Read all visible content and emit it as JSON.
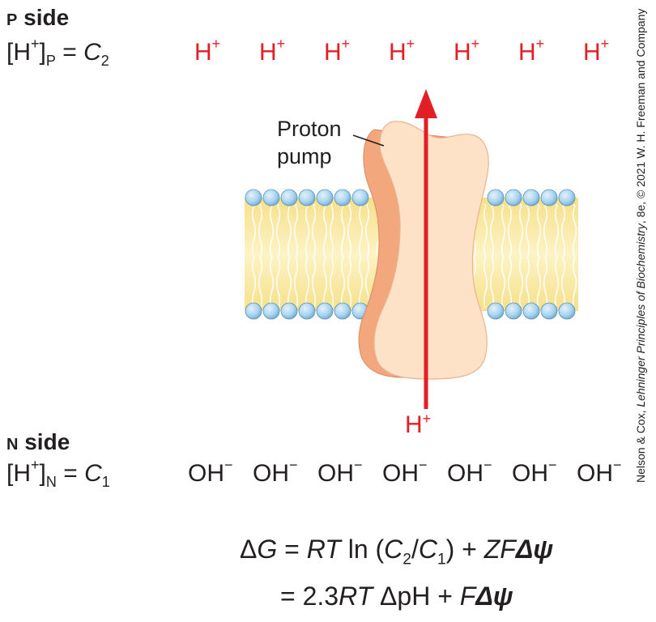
{
  "p_side": {
    "title_letter": "P",
    "title_word": "side",
    "conc_bracket": "[H",
    "conc_charge": "+",
    "conc_close": "]",
    "conc_sub": "P",
    "conc_eq": " = ",
    "conc_var": "C",
    "conc_var_sub": "2",
    "ions": [
      {
        "base": "H",
        "charge": "+"
      },
      {
        "base": "H",
        "charge": "+"
      },
      {
        "base": "H",
        "charge": "+"
      },
      {
        "base": "H",
        "charge": "+"
      },
      {
        "base": "H",
        "charge": "+"
      },
      {
        "base": "H",
        "charge": "+"
      },
      {
        "base": "H",
        "charge": "+"
      }
    ]
  },
  "n_side": {
    "title_letter": "N",
    "title_word": "side",
    "conc_bracket": "[H",
    "conc_charge": "+",
    "conc_close": "]",
    "conc_sub": "N",
    "conc_eq": " = ",
    "conc_var": "C",
    "conc_var_sub": "1",
    "ions": [
      {
        "base": "OH",
        "charge": "−"
      },
      {
        "base": "OH",
        "charge": "−"
      },
      {
        "base": "OH",
        "charge": "−"
      },
      {
        "base": "OH",
        "charge": "−"
      },
      {
        "base": "OH",
        "charge": "−"
      },
      {
        "base": "OH",
        "charge": "−"
      },
      {
        "base": "OH",
        "charge": "−"
      }
    ]
  },
  "pump": {
    "label_line1": "Proton",
    "label_line2": "pump",
    "entering_ion_base": "H",
    "entering_ion_charge": "+"
  },
  "equation": {
    "line1": {
      "delta": "Δ",
      "G": "G",
      "eq": " = ",
      "RT": "RT",
      "ln": " ln (",
      "C2": "C",
      "C2sub": "2",
      "slash": "/",
      "C1": "C",
      "C1sub": "1",
      "close": ") + ",
      "ZF": "ZF",
      "dpsi": "Δψ"
    },
    "line2": {
      "eq": "= 2.3",
      "RT": "RT",
      "dpH": " ΔpH + ",
      "F": "F",
      "dpsi": "Δψ"
    }
  },
  "credit": {
    "prefix": "Nelson & Cox, ",
    "book": "Lehninger Principles of Biochemistry",
    "suffix": ", 8e, © 2021 W. H. Freeman and Company"
  },
  "colors": {
    "proton_red": "#e31e24",
    "pump_fill": "#fde2c8",
    "pump_shadow": "#f2a77c",
    "head_blue": "#a9d4f0",
    "lipid_yellow": "#fbeda4"
  }
}
